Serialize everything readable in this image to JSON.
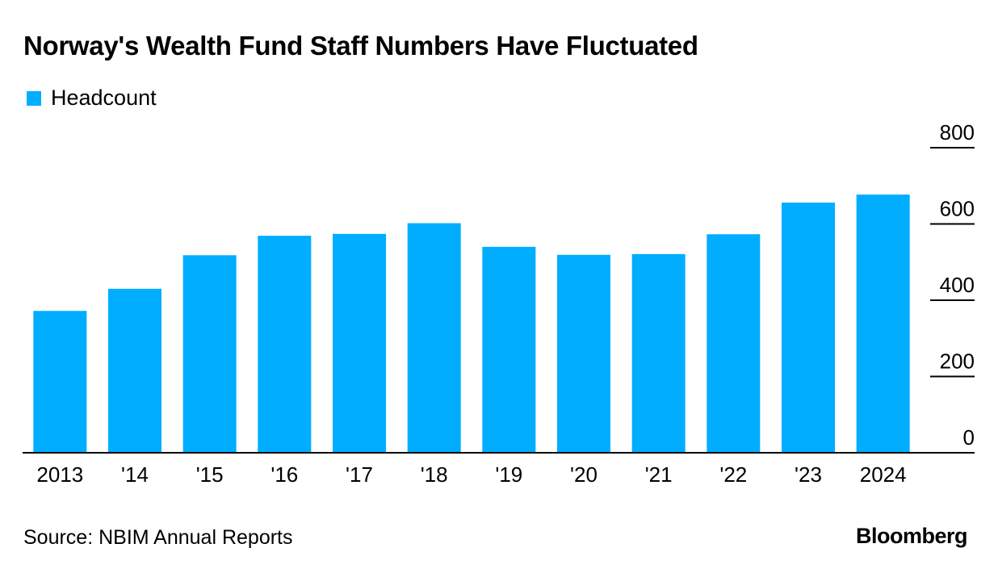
{
  "title": "Norway's Wealth Fund Staff Numbers Have Fluctuated",
  "source": "Source: NBIM Annual Reports",
  "brand": "Bloomberg",
  "colors": {
    "bar": "#00adff",
    "axis": "#000000",
    "text": "#000000"
  },
  "chart_data": {
    "type": "bar",
    "categories": [
      "2013",
      "'14",
      "'15",
      "'16",
      "'17",
      "'18",
      "'19",
      "'20",
      "'21",
      "'22",
      "'23",
      "2024"
    ],
    "series": [
      {
        "name": "Headcount",
        "values": [
          372,
          430,
          518,
          569,
          574,
          602,
          540,
          519,
          521,
          573,
          656,
          677
        ]
      }
    ],
    "ylim": [
      0,
      800
    ],
    "yticks": [
      "0",
      "200",
      "400",
      "600",
      "800"
    ],
    "ytick_values": [
      0,
      200,
      400,
      600,
      800
    ],
    "y_axis_side": "right",
    "grid": false,
    "legend_position": "top-left"
  }
}
